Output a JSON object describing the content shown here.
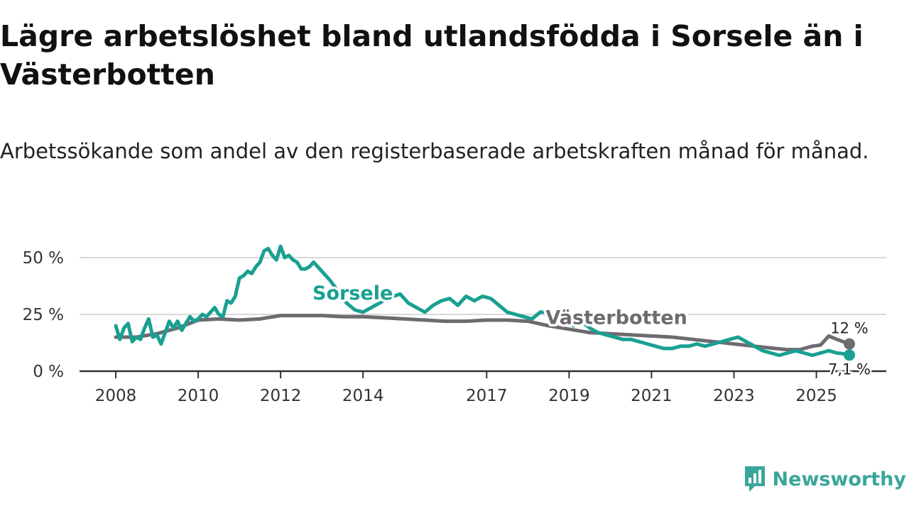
{
  "title": "Lägre arbetslöshet bland utlandsfödda i Sorsele än i Västerbotten",
  "subtitle": "Arbetssökande som andel av den registerbaserade arbetskraften månad för månad.",
  "brand": {
    "name": "Newsworthy",
    "icon": "newsworthy-logo-icon",
    "color": "#3aa69a"
  },
  "chart_data": {
    "type": "line",
    "title": "Lägre arbetslöshet bland utlandsfödda i Sorsele än i Västerbotten",
    "xlabel": "",
    "ylabel": "",
    "xlim": [
      2008,
      2025.8
    ],
    "ylim": [
      0,
      55
    ],
    "grid": true,
    "y_ticks": [
      {
        "value": 0,
        "label": "0 %"
      },
      {
        "value": 25,
        "label": "25 %"
      },
      {
        "value": 50,
        "label": "50 %"
      }
    ],
    "x_ticks": [
      {
        "value": 2008,
        "label": "2008"
      },
      {
        "value": 2010,
        "label": "2010"
      },
      {
        "value": 2012,
        "label": "2012"
      },
      {
        "value": 2014,
        "label": "2014"
      },
      {
        "value": 2017,
        "label": "2017"
      },
      {
        "value": 2019,
        "label": "2019"
      },
      {
        "value": 2021,
        "label": "2021"
      },
      {
        "value": 2023,
        "label": "2023"
      },
      {
        "value": 2025,
        "label": "2025"
      }
    ],
    "series": [
      {
        "name": "Sorsele",
        "color": "#19a091",
        "end_label": "7,1 %",
        "x": [
          2008.0,
          2008.1,
          2008.2,
          2008.3,
          2008.4,
          2008.5,
          2008.6,
          2008.7,
          2008.8,
          2008.9,
          2009.0,
          2009.1,
          2009.2,
          2009.3,
          2009.4,
          2009.5,
          2009.6,
          2009.7,
          2009.8,
          2009.9,
          2010.0,
          2010.1,
          2010.2,
          2010.3,
          2010.4,
          2010.5,
          2010.6,
          2010.7,
          2010.8,
          2010.9,
          2011.0,
          2011.1,
          2011.2,
          2011.3,
          2011.4,
          2011.5,
          2011.6,
          2011.7,
          2011.8,
          2011.9,
          2012.0,
          2012.1,
          2012.2,
          2012.3,
          2012.4,
          2012.5,
          2012.6,
          2012.7,
          2012.8,
          2012.9,
          2013.0,
          2013.2,
          2013.4,
          2013.6,
          2013.8,
          2014.0,
          2014.3,
          2014.6,
          2014.9,
          2015.1,
          2015.3,
          2015.5,
          2015.7,
          2015.9,
          2016.1,
          2016.3,
          2016.5,
          2016.7,
          2016.9,
          2017.1,
          2017.3,
          2017.5,
          2017.7,
          2017.9,
          2018.1,
          2018.3,
          2018.5,
          2018.7,
          2018.9,
          2019.1,
          2019.3,
          2019.5,
          2019.7,
          2019.9,
          2020.1,
          2020.3,
          2020.5,
          2020.7,
          2020.9,
          2021.1,
          2021.3,
          2021.5,
          2021.7,
          2021.9,
          2022.1,
          2022.3,
          2022.5,
          2022.7,
          2022.9,
          2023.1,
          2023.3,
          2023.5,
          2023.7,
          2023.9,
          2024.1,
          2024.3,
          2024.5,
          2024.7,
          2024.9,
          2025.1,
          2025.3,
          2025.5,
          2025.7,
          2025.8
        ],
        "y": [
          20,
          14,
          19,
          21,
          13,
          15,
          14,
          19,
          23,
          15,
          16,
          12,
          17,
          22,
          19,
          22,
          18,
          21,
          24,
          22,
          23,
          25,
          24,
          26,
          28,
          25,
          24,
          31,
          30,
          33,
          41,
          42,
          44,
          43,
          46,
          48,
          53,
          54,
          51,
          49,
          55,
          50,
          51,
          49,
          48,
          45,
          45,
          46,
          48,
          46,
          44,
          40,
          35,
          30,
          27,
          26,
          29,
          32,
          34,
          30,
          28,
          26,
          29,
          31,
          32,
          29,
          33,
          31,
          33,
          32,
          29,
          26,
          25,
          24,
          23,
          26,
          26,
          24,
          23,
          20,
          22,
          19,
          17,
          16,
          15,
          14,
          14,
          13,
          12,
          11,
          10,
          10,
          11,
          11,
          12,
          11,
          12,
          13,
          14,
          15,
          13,
          11,
          9,
          8,
          7,
          8,
          9,
          8,
          7,
          8,
          9,
          8,
          7.6,
          7.1
        ],
        "label": {
          "text": "Sorsele",
          "x": 2013.75,
          "y": 31.5
        }
      },
      {
        "name": "Västerbotten",
        "color": "#6e6b70",
        "end_label": "12 %",
        "x": [
          2008.0,
          2008.5,
          2009.0,
          2009.5,
          2010.0,
          2010.5,
          2011.0,
          2011.5,
          2012.0,
          2012.5,
          2013.0,
          2013.5,
          2014.0,
          2014.5,
          2015.0,
          2015.5,
          2016.0,
          2016.5,
          2017.0,
          2017.5,
          2018.0,
          2018.5,
          2019.0,
          2019.5,
          2020.0,
          2020.5,
          2021.0,
          2021.5,
          2022.0,
          2022.5,
          2023.0,
          2023.5,
          2024.0,
          2024.3,
          2024.6,
          2024.9,
          2025.1,
          2025.3,
          2025.5,
          2025.8
        ],
        "y": [
          15,
          15,
          16.5,
          19,
          22.5,
          23,
          22.5,
          23,
          24.5,
          24.5,
          24.5,
          24,
          24,
          23.5,
          23,
          22.5,
          22,
          22,
          22.5,
          22.5,
          22,
          20,
          18.5,
          17,
          16.5,
          16,
          15.5,
          15,
          14,
          13,
          12,
          11,
          10,
          9.5,
          9.5,
          11,
          11.5,
          15.5,
          14,
          12
        ],
        "label": {
          "text": "Västerbotten",
          "x": 2020.15,
          "y": 20.8
        }
      }
    ]
  }
}
